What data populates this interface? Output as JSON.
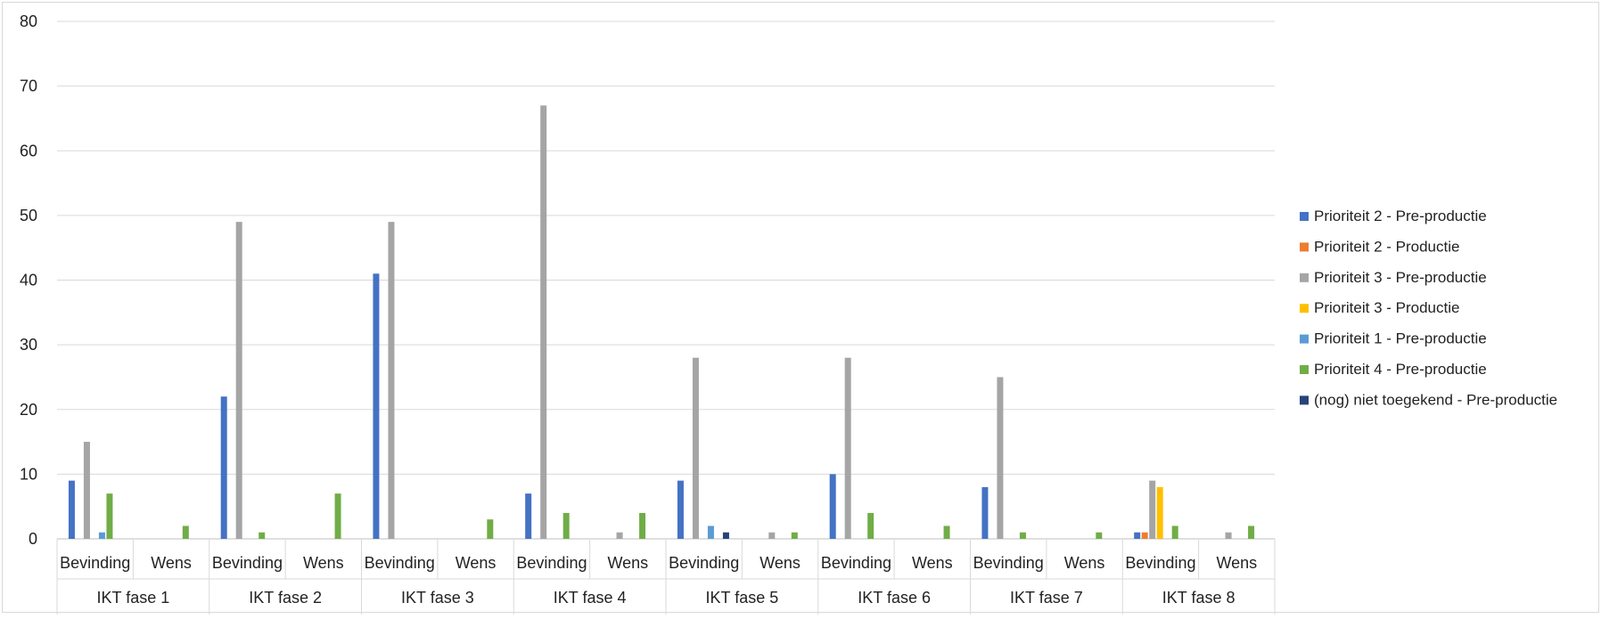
{
  "chart_data": {
    "type": "bar",
    "title": "",
    "xlabel": "",
    "ylabel": "",
    "ylim": [
      0,
      80
    ],
    "yticks": [
      0,
      10,
      20,
      30,
      40,
      50,
      60,
      70,
      80
    ],
    "grid": true,
    "legend_position": "right",
    "groups": [
      "IKT fase 1",
      "IKT fase 2",
      "IKT fase 3",
      "IKT fase 4",
      "IKT fase 5",
      "IKT fase 6",
      "IKT fase 7",
      "IKT fase 8"
    ],
    "subcategories": [
      "Bevinding",
      "Wens"
    ],
    "series": [
      {
        "name": "Prioriteit 2 - Pre-productie",
        "color": "#4472C4",
        "values": [
          9,
          0,
          22,
          0,
          41,
          0,
          7,
          0,
          9,
          0,
          10,
          0,
          8,
          0,
          1,
          0
        ]
      },
      {
        "name": "Prioriteit 2 - Productie",
        "color": "#ED7D31",
        "values": [
          0,
          0,
          0,
          0,
          0,
          0,
          0,
          0,
          0,
          0,
          0,
          0,
          0,
          0,
          1,
          0
        ]
      },
      {
        "name": "Prioriteit 3 - Pre-productie",
        "color": "#A5A5A5",
        "values": [
          15,
          0,
          49,
          0,
          49,
          0,
          67,
          1,
          28,
          1,
          28,
          0,
          25,
          0,
          9,
          1
        ]
      },
      {
        "name": "Prioriteit 3 - Productie",
        "color": "#FFC000",
        "values": [
          0,
          0,
          0,
          0,
          0,
          0,
          0,
          0,
          0,
          0,
          0,
          0,
          0,
          0,
          8,
          0
        ]
      },
      {
        "name": "Prioriteit 1 - Pre-productie",
        "color": "#5B9BD5",
        "values": [
          1,
          0,
          0,
          0,
          0,
          0,
          0,
          0,
          2,
          0,
          0,
          0,
          0,
          0,
          0,
          0
        ]
      },
      {
        "name": "Prioriteit 4 - Pre-productie",
        "color": "#70AD47",
        "values": [
          7,
          2,
          1,
          7,
          0,
          3,
          4,
          4,
          0,
          1,
          4,
          2,
          1,
          1,
          2,
          2
        ]
      },
      {
        "name": "(nog) niet toegekend - Pre-productie",
        "color": "#264478",
        "values": [
          0,
          0,
          0,
          0,
          0,
          0,
          0,
          0,
          1,
          0,
          0,
          0,
          0,
          0,
          0,
          0
        ]
      }
    ]
  }
}
